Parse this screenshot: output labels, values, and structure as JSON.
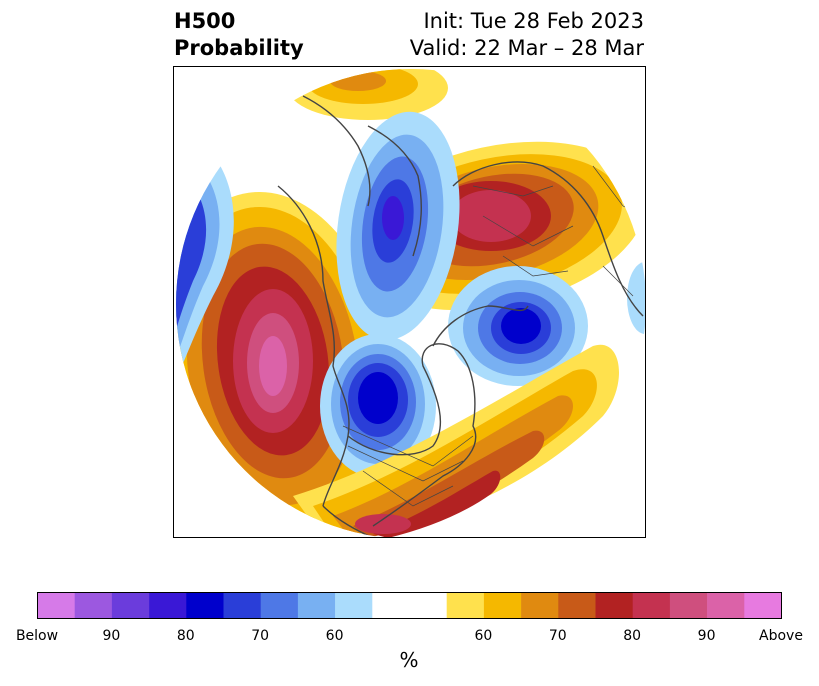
{
  "header": {
    "title_line1": "H500",
    "title_line2": "Probability",
    "init_line": "Init: Tue 28 Feb 2023",
    "valid_line": "Valid: 22 Mar – 28 Mar"
  },
  "map": {
    "projection": "polar stereographic (north polar cap)",
    "coastlines": true,
    "borders": true
  },
  "colorbar": {
    "unit_label": "%",
    "colors": [
      "#d67ae8",
      "#9c58e0",
      "#6b3cdc",
      "#3a18d6",
      "#0000cc",
      "#2a3ed8",
      "#4e78e6",
      "#78b0f2",
      "#aadcfc",
      "#ffffff",
      "#ffffff",
      "#ffe14d",
      "#f5b800",
      "#e08a10",
      "#c85a18",
      "#b22222",
      "#c43250",
      "#cf4f7e",
      "#db62a8",
      "#e77ae0"
    ],
    "tick_labels": [
      {
        "text": "Below",
        "index": 0
      },
      {
        "text": "90",
        "index": 2
      },
      {
        "text": "80",
        "index": 4
      },
      {
        "text": "70",
        "index": 6
      },
      {
        "text": "60",
        "index": 8
      },
      {
        "text": "60",
        "index": 12
      },
      {
        "text": "70",
        "index": 14
      },
      {
        "text": "80",
        "index": 16
      },
      {
        "text": "90",
        "index": 18
      },
      {
        "text": "Above",
        "index": 20
      }
    ]
  }
}
